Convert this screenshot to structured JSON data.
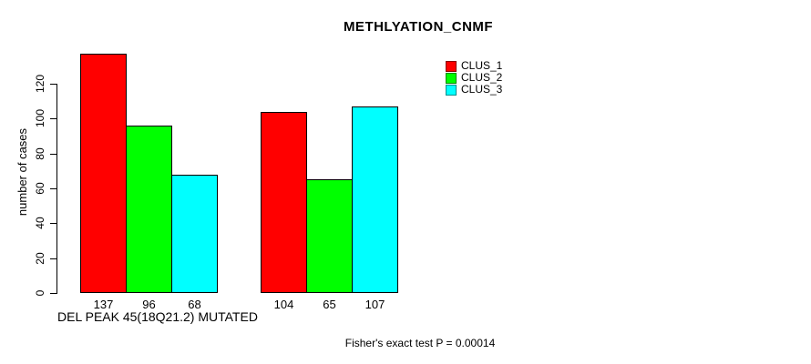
{
  "chart_data": {
    "type": "bar",
    "title": "METHLYATION_CNMF",
    "ylabel": "number of cases",
    "xlabel": "DEL PEAK 45(18Q21.2) MUTATED",
    "footer": "Fisher's exact test P = 0.00014",
    "yticks": [
      0,
      20,
      40,
      60,
      80,
      100,
      120
    ],
    "ylim": [
      0,
      120
    ],
    "grid": false,
    "bar_value_labels": [
      137,
      96,
      68,
      104,
      65,
      107
    ],
    "legend": {
      "position": "top-right",
      "entries": [
        {
          "label": "CLUS_1",
          "color": "#ff0000"
        },
        {
          "label": "CLUS_2",
          "color": "#00ff00"
        },
        {
          "label": "CLUS_3",
          "color": "#00ffff"
        }
      ]
    },
    "groups": [
      {
        "label": "DEL PEAK 45(18Q21.2) MUTATED",
        "values": [
          137,
          96,
          68
        ]
      },
      {
        "label": "",
        "values": [
          104,
          65,
          107
        ]
      }
    ],
    "series": [
      {
        "name": "CLUS_1",
        "color": "#ff0000",
        "values": [
          137,
          104
        ]
      },
      {
        "name": "CLUS_2",
        "color": "#00ff00",
        "values": [
          96,
          65
        ]
      },
      {
        "name": "CLUS_3",
        "color": "#00ffff",
        "values": [
          68,
          107
        ]
      }
    ]
  }
}
